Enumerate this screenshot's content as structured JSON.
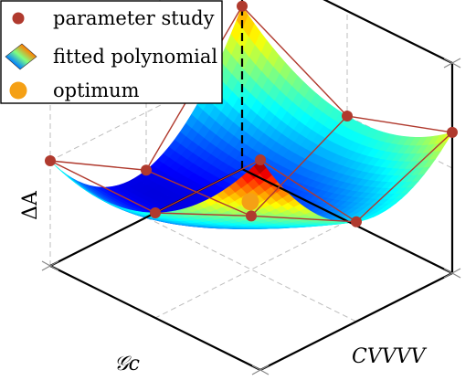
{
  "chart_data": {
    "type": "surface-3d",
    "title": "",
    "xlabel": "𝒢c",
    "ylabel": "CVVVV",
    "zlabel": "ΔA",
    "grid": true,
    "legend_position": "top-left",
    "legend": [
      {
        "label": "parameter study",
        "marker": "circle",
        "color": "#b03a2e"
      },
      {
        "label": "fitted polynomial",
        "marker": "surface-patch",
        "color": "jet"
      },
      {
        "label": "optimum",
        "marker": "circle",
        "color": "#f5a015"
      }
    ],
    "grid_levels": [
      -1,
      0,
      1
    ],
    "parameter_study": [
      {
        "x": -1,
        "y": -1,
        "z": 0.55
      },
      {
        "x": -1,
        "y": 0,
        "z": 0.0
      },
      {
        "x": -1,
        "y": 1,
        "z": 0.34
      },
      {
        "x": 0,
        "y": -1,
        "z": -0.55
      },
      {
        "x": 0,
        "y": 0,
        "z": -0.49
      },
      {
        "x": 0,
        "y": 1,
        "z": -0.05
      },
      {
        "x": 1,
        "y": -1,
        "z": 0.0
      },
      {
        "x": 1,
        "y": 0,
        "z": 0.0
      },
      {
        "x": 1,
        "y": 1,
        "z": 1.0
      }
    ],
    "optimum": {
      "x": -0.1,
      "y": -0.1,
      "z": -0.45
    },
    "surface_colormap": "jet"
  }
}
